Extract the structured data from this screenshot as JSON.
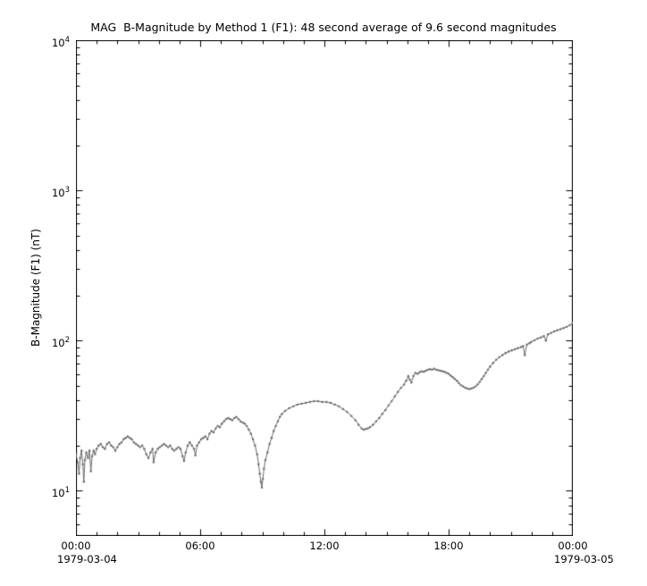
{
  "chart_data": {
    "type": "line",
    "title": "MAG  B-Magnitude by Method 1 (F1): 48 second average of 9.6 second magnitudes",
    "ylabel": "B-Magnitude (F1) (nT)",
    "xlabel": "",
    "x_unit": "hours since 1979-03-04 00:00",
    "xlim": [
      0,
      24
    ],
    "ylim": [
      5,
      10000
    ],
    "yscale": "log",
    "grid": false,
    "legend": null,
    "x_date_left": "1979-03-04",
    "x_date_right": "1979-03-05",
    "x_ticks": [
      {
        "label": "00:00",
        "value": 0
      },
      {
        "label": "06:00",
        "value": 6
      },
      {
        "label": "12:00",
        "value": 12
      },
      {
        "label": "18:00",
        "value": 18
      },
      {
        "label": "00:00",
        "value": 24
      }
    ],
    "x_minor_step": 1,
    "y_ticks": [
      {
        "base": "10",
        "exp": "4",
        "value": 10000
      },
      {
        "base": "10",
        "exp": "3",
        "value": 1000
      },
      {
        "base": "10",
        "exp": "2",
        "value": 100
      },
      {
        "base": "10",
        "exp": "1",
        "value": 10
      }
    ],
    "series": [
      {
        "name": "B-Magnitude (F1)",
        "color": "#696969",
        "marker": "dot",
        "points": [
          [
            0.0,
            17.5
          ],
          [
            0.08,
            15.5
          ],
          [
            0.15,
            13.0
          ],
          [
            0.2,
            16.5
          ],
          [
            0.27,
            18.5
          ],
          [
            0.33,
            15.0
          ],
          [
            0.38,
            11.5
          ],
          [
            0.43,
            16.0
          ],
          [
            0.5,
            18.0
          ],
          [
            0.58,
            16.5
          ],
          [
            0.65,
            18.5
          ],
          [
            0.72,
            13.5
          ],
          [
            0.78,
            17.0
          ],
          [
            0.85,
            18.5
          ],
          [
            0.92,
            17.5
          ],
          [
            1.0,
            19.0
          ],
          [
            1.1,
            20.0
          ],
          [
            1.2,
            20.5
          ],
          [
            1.3,
            19.5
          ],
          [
            1.4,
            19.0
          ],
          [
            1.5,
            20.5
          ],
          [
            1.6,
            21.0
          ],
          [
            1.7,
            20.0
          ],
          [
            1.8,
            19.5
          ],
          [
            1.9,
            18.5
          ],
          [
            2.0,
            19.5
          ],
          [
            2.1,
            20.5
          ],
          [
            2.2,
            21.0
          ],
          [
            2.3,
            22.0
          ],
          [
            2.4,
            22.5
          ],
          [
            2.5,
            23.0
          ],
          [
            2.6,
            22.5
          ],
          [
            2.7,
            22.0
          ],
          [
            2.8,
            21.0
          ],
          [
            2.9,
            20.5
          ],
          [
            3.0,
            20.0
          ],
          [
            3.1,
            19.5
          ],
          [
            3.2,
            20.0
          ],
          [
            3.3,
            19.0
          ],
          [
            3.4,
            17.5
          ],
          [
            3.5,
            16.5
          ],
          [
            3.6,
            18.0
          ],
          [
            3.7,
            19.0
          ],
          [
            3.75,
            15.5
          ],
          [
            3.85,
            18.0
          ],
          [
            3.95,
            19.0
          ],
          [
            4.05,
            19.5
          ],
          [
            4.15,
            20.0
          ],
          [
            4.25,
            20.5
          ],
          [
            4.35,
            20.0
          ],
          [
            4.45,
            19.5
          ],
          [
            4.55,
            20.0
          ],
          [
            4.65,
            19.0
          ],
          [
            4.75,
            18.5
          ],
          [
            4.85,
            19.0
          ],
          [
            4.95,
            19.5
          ],
          [
            5.05,
            19.0
          ],
          [
            5.15,
            17.0
          ],
          [
            5.22,
            15.8
          ],
          [
            5.3,
            18.0
          ],
          [
            5.4,
            20.0
          ],
          [
            5.5,
            21.0
          ],
          [
            5.6,
            20.0
          ],
          [
            5.7,
            19.0
          ],
          [
            5.77,
            17.2
          ],
          [
            5.85,
            20.0
          ],
          [
            5.95,
            21.0
          ],
          [
            6.05,
            22.0
          ],
          [
            6.15,
            22.5
          ],
          [
            6.25,
            23.0
          ],
          [
            6.35,
            22.0
          ],
          [
            6.45,
            24.0
          ],
          [
            6.55,
            25.0
          ],
          [
            6.65,
            24.5
          ],
          [
            6.75,
            26.0
          ],
          [
            6.85,
            27.0
          ],
          [
            6.95,
            26.5
          ],
          [
            7.05,
            28.0
          ],
          [
            7.15,
            29.0
          ],
          [
            7.25,
            30.0
          ],
          [
            7.35,
            30.5
          ],
          [
            7.45,
            30.0
          ],
          [
            7.55,
            29.5
          ],
          [
            7.65,
            30.5
          ],
          [
            7.75,
            31.0
          ],
          [
            7.85,
            30.0
          ],
          [
            7.95,
            29.0
          ],
          [
            8.05,
            28.5
          ],
          [
            8.15,
            28.0
          ],
          [
            8.25,
            27.0
          ],
          [
            8.35,
            25.5
          ],
          [
            8.45,
            24.0
          ],
          [
            8.55,
            22.0
          ],
          [
            8.65,
            20.0
          ],
          [
            8.75,
            17.5
          ],
          [
            8.82,
            15.0
          ],
          [
            8.88,
            13.0
          ],
          [
            8.93,
            11.5
          ],
          [
            8.98,
            10.5
          ],
          [
            9.03,
            12.0
          ],
          [
            9.08,
            14.0
          ],
          [
            9.15,
            16.0
          ],
          [
            9.25,
            18.0
          ],
          [
            9.35,
            20.5
          ],
          [
            9.45,
            22.5
          ],
          [
            9.55,
            25.0
          ],
          [
            9.65,
            27.0
          ],
          [
            9.75,
            29.0
          ],
          [
            9.85,
            31.0
          ],
          [
            9.95,
            32.5
          ],
          [
            10.1,
            34.0
          ],
          [
            10.3,
            35.5
          ],
          [
            10.5,
            36.5
          ],
          [
            10.7,
            37.5
          ],
          [
            10.9,
            38.0
          ],
          [
            11.1,
            38.5
          ],
          [
            11.3,
            39.0
          ],
          [
            11.5,
            39.5
          ],
          [
            11.7,
            39.5
          ],
          [
            11.9,
            39.0
          ],
          [
            12.1,
            39.0
          ],
          [
            12.3,
            38.5
          ],
          [
            12.5,
            37.5
          ],
          [
            12.7,
            36.5
          ],
          [
            12.9,
            35.0
          ],
          [
            13.1,
            33.5
          ],
          [
            13.3,
            31.5
          ],
          [
            13.5,
            29.5
          ],
          [
            13.65,
            27.5
          ],
          [
            13.8,
            26.0
          ],
          [
            13.9,
            25.5
          ],
          [
            14.0,
            25.8
          ],
          [
            14.1,
            26.0
          ],
          [
            14.2,
            26.5
          ],
          [
            14.35,
            27.5
          ],
          [
            14.5,
            29.0
          ],
          [
            14.65,
            30.5
          ],
          [
            14.8,
            32.5
          ],
          [
            14.95,
            34.5
          ],
          [
            15.1,
            37.0
          ],
          [
            15.25,
            39.5
          ],
          [
            15.4,
            42.5
          ],
          [
            15.55,
            45.5
          ],
          [
            15.7,
            48.5
          ],
          [
            15.85,
            51.0
          ],
          [
            15.95,
            54.0
          ],
          [
            16.05,
            58.0
          ],
          [
            16.12,
            55.0
          ],
          [
            16.2,
            52.5
          ],
          [
            16.3,
            58.0
          ],
          [
            16.4,
            61.0
          ],
          [
            16.5,
            60.0
          ],
          [
            16.6,
            61.5
          ],
          [
            16.7,
            62.5
          ],
          [
            16.8,
            62.0
          ],
          [
            16.9,
            63.0
          ],
          [
            17.0,
            64.0
          ],
          [
            17.1,
            64.5
          ],
          [
            17.2,
            64.0
          ],
          [
            17.3,
            65.0
          ],
          [
            17.4,
            64.0
          ],
          [
            17.5,
            63.5
          ],
          [
            17.6,
            63.0
          ],
          [
            17.7,
            62.5
          ],
          [
            17.8,
            62.0
          ],
          [
            17.9,
            61.0
          ],
          [
            18.0,
            60.0
          ],
          [
            18.1,
            58.5
          ],
          [
            18.2,
            57.0
          ],
          [
            18.3,
            55.5
          ],
          [
            18.4,
            54.0
          ],
          [
            18.5,
            52.0
          ],
          [
            18.6,
            50.5
          ],
          [
            18.7,
            49.5
          ],
          [
            18.8,
            48.5
          ],
          [
            18.9,
            48.0
          ],
          [
            19.0,
            47.5
          ],
          [
            19.1,
            48.0
          ],
          [
            19.2,
            48.5
          ],
          [
            19.3,
            49.5
          ],
          [
            19.4,
            51.0
          ],
          [
            19.5,
            53.0
          ],
          [
            19.6,
            55.5
          ],
          [
            19.7,
            58.0
          ],
          [
            19.8,
            61.0
          ],
          [
            19.9,
            64.0
          ],
          [
            20.0,
            67.0
          ],
          [
            20.15,
            71.0
          ],
          [
            20.3,
            74.5
          ],
          [
            20.45,
            77.5
          ],
          [
            20.6,
            80.0
          ],
          [
            20.75,
            82.5
          ],
          [
            20.9,
            84.5
          ],
          [
            21.05,
            86.0
          ],
          [
            21.2,
            87.5
          ],
          [
            21.35,
            89.0
          ],
          [
            21.5,
            90.5
          ],
          [
            21.6,
            92.0
          ],
          [
            21.68,
            80.0
          ],
          [
            21.78,
            94.0
          ],
          [
            21.9,
            96.0
          ],
          [
            22.0,
            98.0
          ],
          [
            22.15,
            100.5
          ],
          [
            22.3,
            103.0
          ],
          [
            22.45,
            105.0
          ],
          [
            22.6,
            107.0
          ],
          [
            22.7,
            100.0
          ],
          [
            22.8,
            110.0
          ],
          [
            22.95,
            112.5
          ],
          [
            23.1,
            115.0
          ],
          [
            23.25,
            117.0
          ],
          [
            23.4,
            119.0
          ],
          [
            23.55,
            121.0
          ],
          [
            23.7,
            123.5
          ],
          [
            23.85,
            126.5
          ],
          [
            24.0,
            131.0
          ]
        ]
      }
    ]
  }
}
